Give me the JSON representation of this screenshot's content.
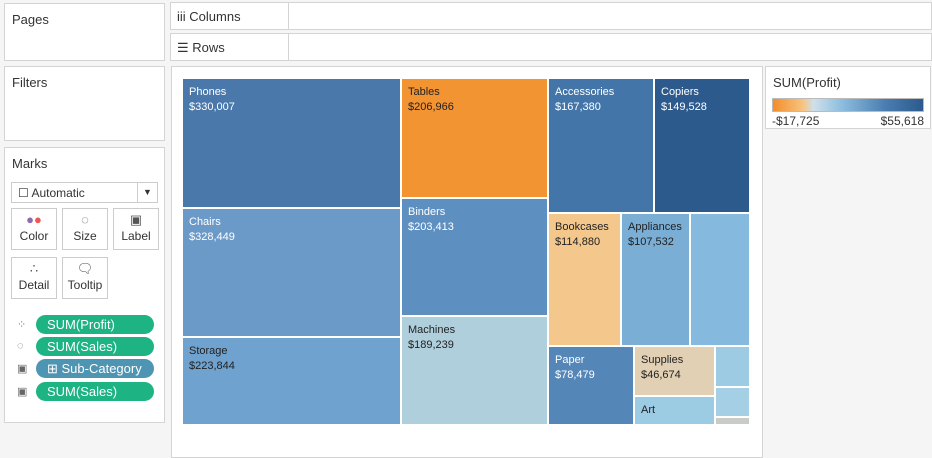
{
  "pages": {
    "title": "Pages"
  },
  "filters": {
    "title": "Filters"
  },
  "shelves": {
    "columns": "Columns",
    "rows": "Rows"
  },
  "marks": {
    "title": "Marks",
    "type": "Automatic",
    "buttons": {
      "color": "Color",
      "size": "Size",
      "label": "Label",
      "detail": "Detail",
      "tooltip": "Tooltip"
    },
    "pills": [
      {
        "label": "SUM(Profit)",
        "encoding": "color"
      },
      {
        "label": "SUM(Sales)",
        "encoding": "size"
      },
      {
        "label": "Sub-Category",
        "encoding": "label"
      },
      {
        "label": "SUM(Sales)",
        "encoding": "label"
      }
    ]
  },
  "legend": {
    "title": "SUM(Profit)",
    "min": "-$17,725",
    "max": "$55,618",
    "low_color": "#f28e2b",
    "high_color": "#2c5a8c"
  },
  "treemap": [
    {
      "name": "Phones",
      "value": "$330,007",
      "color": "#4a78ab"
    },
    {
      "name": "Chairs",
      "value": "$328,449",
      "color": "#6b9ac8"
    },
    {
      "name": "Storage",
      "value": "$223,844",
      "color": "#6fa2cf"
    },
    {
      "name": "Tables",
      "value": "$206,966",
      "color": "#f39433"
    },
    {
      "name": "Binders",
      "value": "$203,413",
      "color": "#5e8fc1"
    },
    {
      "name": "Machines",
      "value": "$189,239",
      "color": "#b0cfdc"
    },
    {
      "name": "Accessories",
      "value": "$167,380",
      "color": "#4475a8"
    },
    {
      "name": "Copiers",
      "value": "$149,528",
      "color": "#2c5a8c"
    },
    {
      "name": "Bookcases",
      "value": "$114,880",
      "color": "#f4c78c"
    },
    {
      "name": "Appliances",
      "value": "$107,532",
      "color": "#7aaed5"
    },
    {
      "name": "Paper",
      "value": "$78,479",
      "color": "#5586b8"
    },
    {
      "name": "Supplies",
      "value": "$46,674",
      "color": "#e2d0b5"
    },
    {
      "name": "Art",
      "color": "#9ccbe4"
    }
  ]
}
